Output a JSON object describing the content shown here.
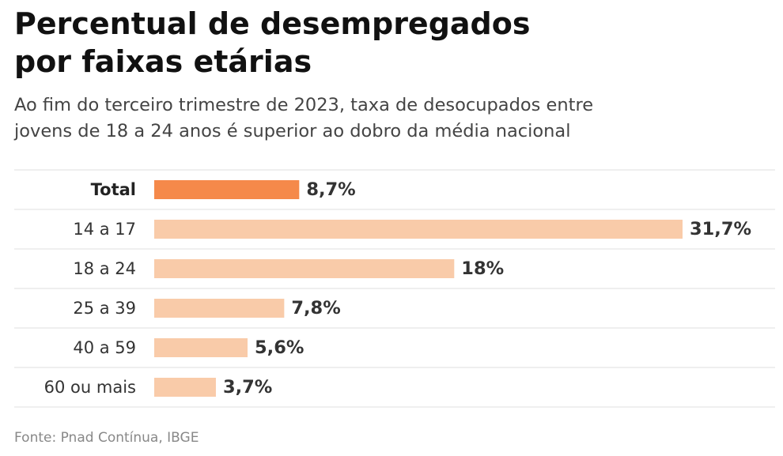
{
  "title_line1": "Percentual de desempregados",
  "title_line2": "por faixas etárias",
  "subtitle_line1": "Ao fim do terceiro trimestre de 2023, taxa de desocupados entre",
  "subtitle_line2": "jovens de 18 a 24 anos é superior ao dobro da média nacional",
  "source": "Fonte: Pnad Contínua, IBGE",
  "colors": {
    "highlight": "#F5894A",
    "bar": "#F9CBA9",
    "gridline": "#E5E5E5"
  },
  "chart_data": {
    "type": "bar",
    "orientation": "horizontal",
    "categories": [
      "Total",
      "14 a 17",
      "18 a 24",
      "25 a 39",
      "40 a 59",
      "60 ou mais"
    ],
    "values": [
      8.7,
      31.7,
      18,
      7.8,
      5.6,
      3.7
    ],
    "value_labels": [
      "8,7%",
      "31,7%",
      "18%",
      "7,8%",
      "5,6%",
      "3,7%"
    ],
    "highlight": [
      "Total"
    ],
    "unit": "%",
    "xlim": [
      0,
      31.7
    ],
    "grid": false,
    "legend": "none"
  }
}
